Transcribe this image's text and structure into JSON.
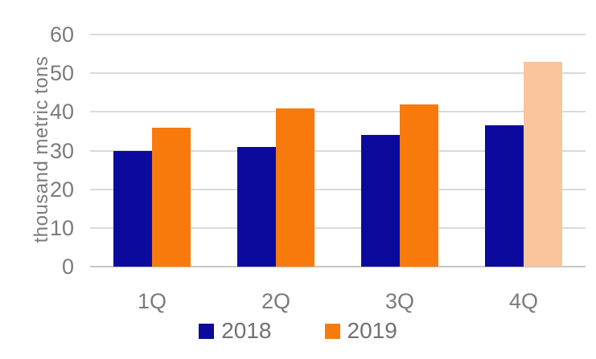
{
  "chart_data": {
    "type": "bar",
    "title": "",
    "xlabel": "",
    "ylabel": "thousand metric tons",
    "categories": [
      "1Q",
      "2Q",
      "3Q",
      "4Q"
    ],
    "series": [
      {
        "name": "2018",
        "color": "#0c0a9d",
        "values": [
          30,
          31,
          34,
          36.5
        ]
      },
      {
        "name": "2019",
        "color": "#f87a0c",
        "values": [
          36,
          41,
          42,
          53
        ]
      }
    ],
    "highlight": {
      "series": "2019",
      "category": "4Q",
      "color": "#fac49c"
    },
    "ylim": [
      0,
      60
    ],
    "yticks": [
      0,
      10,
      20,
      30,
      40,
      50,
      60
    ],
    "grid": "horizontal",
    "legend_position": "bottom"
  },
  "style": {
    "text_color": "#7b7b7b",
    "gridline_color": "#d9d9d9",
    "baseline_color": "#c6c6c6",
    "background": "#ffffff"
  }
}
